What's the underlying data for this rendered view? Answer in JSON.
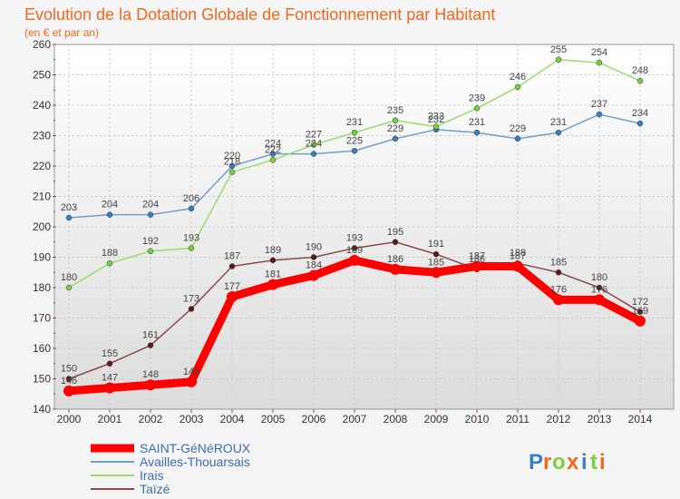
{
  "chart_data": {
    "type": "line",
    "title": "Evolution de la Dotation Globale de Fonctionnement par Habitant",
    "subtitle": "(en € et par an)",
    "xlabel": "",
    "ylabel": "",
    "x": [
      "2000",
      "2001",
      "2002",
      "2003",
      "2004",
      "2005",
      "2006",
      "2007",
      "2008",
      "2009",
      "2010",
      "2011",
      "2012",
      "2013",
      "2014"
    ],
    "ylim": [
      140,
      260
    ],
    "yticks": [
      140,
      150,
      160,
      170,
      180,
      190,
      200,
      210,
      220,
      230,
      240,
      250,
      260
    ],
    "grid": true,
    "legend_position": "bottom-left",
    "series": [
      {
        "name": "SAINT-GéNéROUX",
        "color": "#ff0000",
        "marker_color": "#ff0000",
        "emphasis": true,
        "values": [
          146,
          147,
          148,
          149,
          177,
          181,
          184,
          189,
          186,
          185,
          187,
          187,
          176,
          176,
          169
        ]
      },
      {
        "name": "Availles-Thouarsais",
        "color": "#6f9fce",
        "marker_color": "#3a7ec2",
        "emphasis": false,
        "values": [
          203,
          204,
          204,
          206,
          220,
          224,
          224,
          225,
          229,
          232,
          231,
          229,
          231,
          237,
          234
        ]
      },
      {
        "name": "Irais",
        "color": "#9adc6a",
        "marker_color": "#79cf3a",
        "emphasis": false,
        "values": [
          180,
          188,
          192,
          193,
          218,
          222,
          227,
          231,
          235,
          233,
          239,
          246,
          255,
          254,
          248
        ]
      },
      {
        "name": "Taïzé",
        "color": "#8c4a4a",
        "marker_color": "#5a1a1a",
        "emphasis": false,
        "values": [
          150,
          155,
          161,
          173,
          187,
          189,
          190,
          193,
          195,
          191,
          186,
          188,
          185,
          180,
          172
        ]
      }
    ]
  },
  "watermark": {
    "text": "Proxiti"
  }
}
